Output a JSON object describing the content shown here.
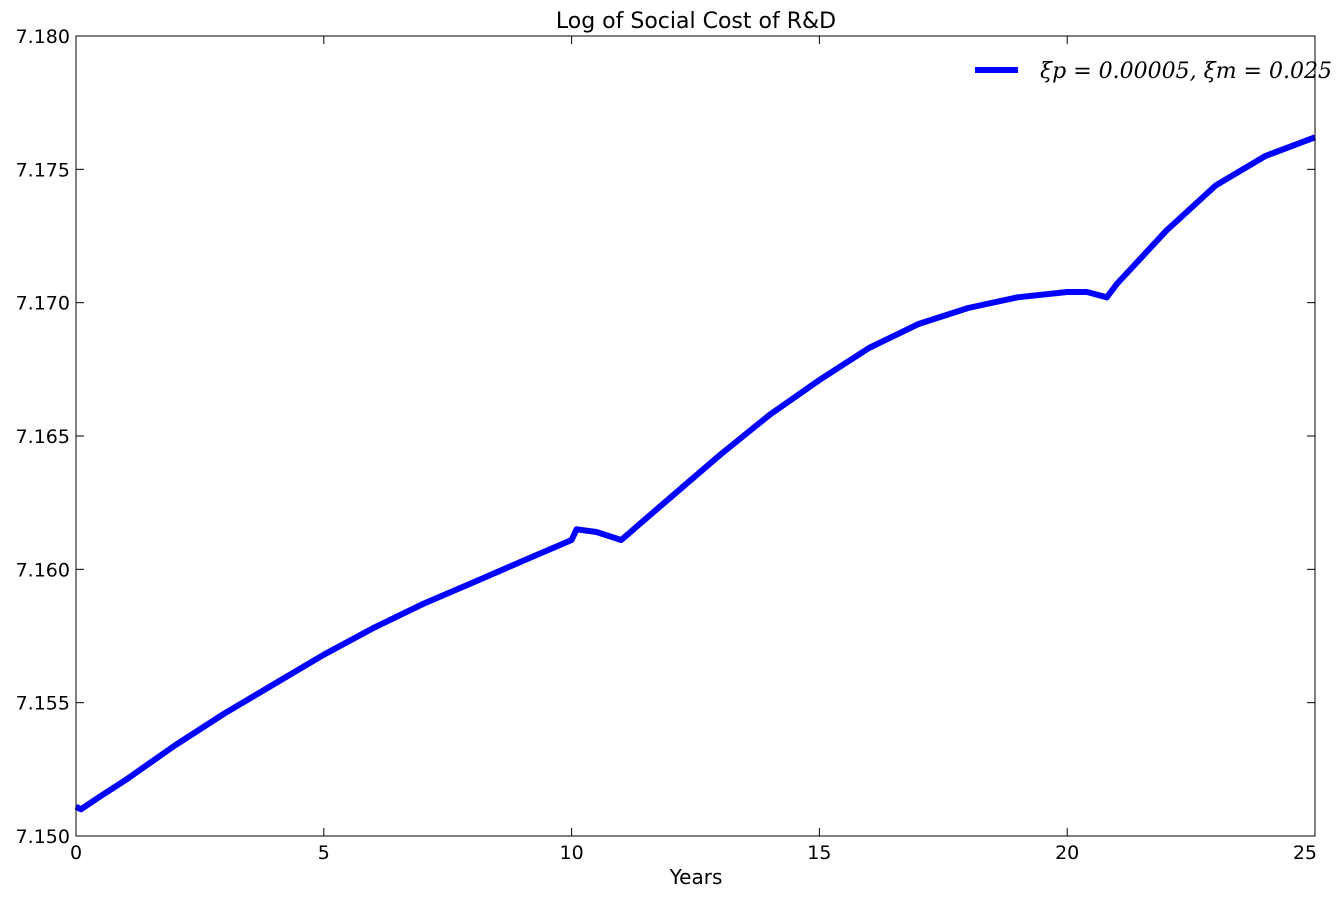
{
  "chart_data": {
    "type": "line",
    "title": "Log of Social Cost of R&D",
    "xlabel": "Years",
    "ylabel": "",
    "xlim": [
      0,
      25
    ],
    "ylim": [
      7.15,
      7.18
    ],
    "xticks": [
      0,
      5,
      10,
      15,
      20,
      25
    ],
    "xtick_labels": [
      "0",
      "5",
      "10",
      "15",
      "20",
      "25"
    ],
    "yticks": [
      7.15,
      7.155,
      7.16,
      7.165,
      7.17,
      7.175,
      7.18
    ],
    "ytick_labels": [
      "7.150",
      "7.155",
      "7.160",
      "7.165",
      "7.170",
      "7.175",
      "7.180"
    ],
    "grid": false,
    "legend_position": "top-right",
    "series": [
      {
        "name": "ξp = 0.00005, ξm = 0.025",
        "color": "#0000ff",
        "x": [
          0,
          0.1,
          0.5,
          1,
          2,
          3,
          4,
          5,
          6,
          7,
          8,
          9,
          10,
          10.1,
          10.5,
          11,
          12,
          13,
          14,
          15,
          16,
          17,
          18,
          19,
          20,
          20.4,
          20.8,
          21,
          22,
          23,
          24,
          25
        ],
        "y": [
          7.1511,
          7.151,
          7.1515,
          7.1521,
          7.1534,
          7.1546,
          7.1557,
          7.1568,
          7.1578,
          7.1587,
          7.1595,
          7.1603,
          7.1611,
          7.1615,
          7.1614,
          7.1611,
          7.1627,
          7.1643,
          7.1658,
          7.1671,
          7.1683,
          7.1692,
          7.1698,
          7.1702,
          7.1704,
          7.1704,
          7.1702,
          7.1707,
          7.1727,
          7.1744,
          7.1755,
          7.1762
        ]
      }
    ]
  }
}
